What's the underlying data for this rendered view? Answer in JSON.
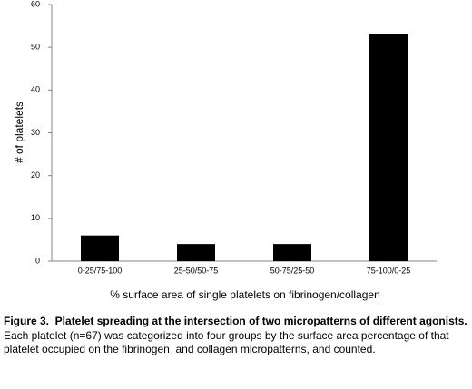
{
  "chart_data": {
    "type": "bar",
    "categories": [
      "0-25/75-100",
      "25-50/50-75",
      "50-75/25-50",
      "75-100/0-25"
    ],
    "values": [
      6,
      4,
      4,
      53
    ],
    "color": "#000000",
    "ylim": [
      0,
      60
    ],
    "yticks": [
      0,
      10,
      20,
      30,
      40,
      50,
      60
    ],
    "ylabel": "# of platelets",
    "xlabel": "% surface area of single platelets on fibrinogen/collagen",
    "grid": false
  },
  "caption": {
    "title": "Figure 3.  Platelet spreading at the intersection of two micropatterns of different agonists.",
    "text": "Each platelet (n=67) was categorized into four groups by the surface area percentage of that platelet occupied on the fibrinogen  and collagen micropatterns, and counted."
  }
}
